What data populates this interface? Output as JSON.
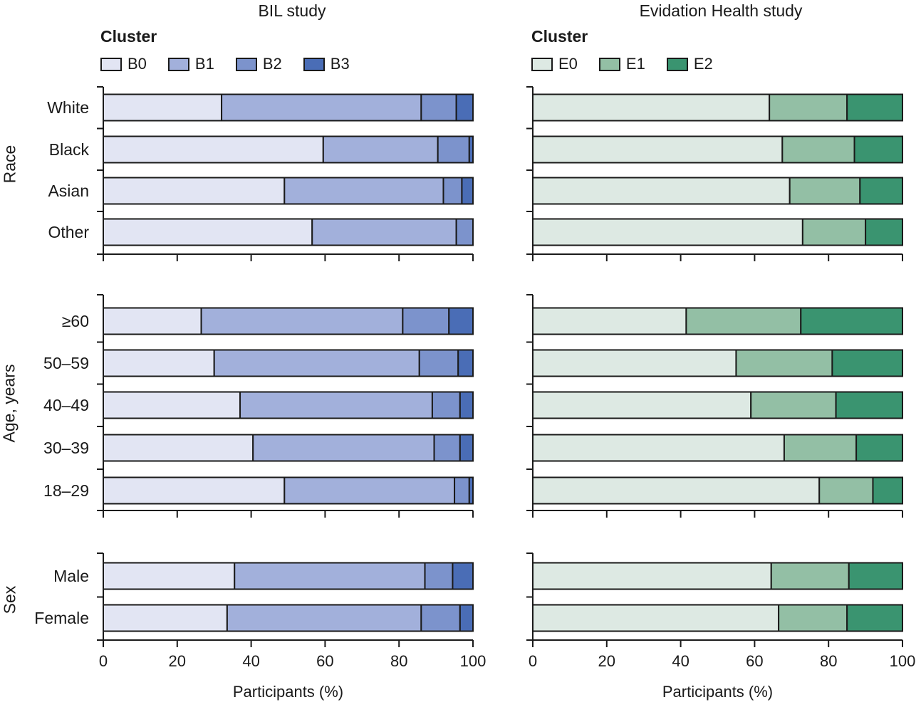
{
  "chart_data": [
    {
      "type": "bar",
      "orientation": "horizontal-stacked",
      "title": "BIL study",
      "legend_title": "Cluster",
      "xlabel": "Participants (%)",
      "xlim": [
        0,
        100
      ],
      "xticks": [
        "0",
        "20",
        "40",
        "60",
        "80",
        "100"
      ],
      "series": [
        {
          "name": "B0",
          "color": "#e2e5f3"
        },
        {
          "name": "B1",
          "color": "#a2b0db"
        },
        {
          "name": "B2",
          "color": "#7c93cc"
        },
        {
          "name": "B3",
          "color": "#4a6db6"
        }
      ],
      "groups": [
        {
          "label": "Race",
          "rows": [
            {
              "label": "White",
              "values": [
                32,
                54,
                9.5,
                4.5
              ]
            },
            {
              "label": "Black",
              "values": [
                59.5,
                31,
                8.5,
                1
              ]
            },
            {
              "label": "Asian",
              "values": [
                49,
                43,
                5,
                3
              ]
            },
            {
              "label": "Other",
              "values": [
                56.5,
                39,
                4.5,
                0
              ]
            }
          ]
        },
        {
          "label": "Age, years",
          "rows": [
            {
              "label": "≥60",
              "values": [
                26.5,
                54.5,
                12.5,
                6.5
              ]
            },
            {
              "label": "50–59",
              "values": [
                30,
                55.5,
                10.5,
                4
              ]
            },
            {
              "label": "40–49",
              "values": [
                37,
                52,
                7.5,
                3.5
              ]
            },
            {
              "label": "30–39",
              "values": [
                40.5,
                49,
                7,
                3.5
              ]
            },
            {
              "label": "18–29",
              "values": [
                49,
                46,
                4,
                1
              ]
            }
          ]
        },
        {
          "label": "Sex",
          "rows": [
            {
              "label": "Male",
              "values": [
                35.5,
                51.5,
                7.5,
                5.5
              ]
            },
            {
              "label": "Female",
              "values": [
                33.5,
                52.5,
                10.5,
                3.5
              ]
            }
          ]
        }
      ]
    },
    {
      "type": "bar",
      "orientation": "horizontal-stacked",
      "title": "Evidation Health study",
      "legend_title": "Cluster",
      "xlabel": "Participants (%)",
      "xlim": [
        0,
        100
      ],
      "xticks": [
        "0",
        "20",
        "40",
        "60",
        "80",
        "100"
      ],
      "series": [
        {
          "name": "E0",
          "color": "#dde9e3"
        },
        {
          "name": "E1",
          "color": "#93bfa5"
        },
        {
          "name": "E2",
          "color": "#3a9470"
        }
      ],
      "groups": [
        {
          "label": "Race",
          "rows": [
            {
              "label": "White",
              "values": [
                64,
                21,
                15
              ]
            },
            {
              "label": "Black",
              "values": [
                67.5,
                19.5,
                13
              ]
            },
            {
              "label": "Asian",
              "values": [
                69.5,
                19,
                11.5
              ]
            },
            {
              "label": "Other",
              "values": [
                73,
                17,
                10
              ]
            }
          ]
        },
        {
          "label": "Age, years",
          "rows": [
            {
              "label": "≥60",
              "values": [
                41.5,
                31,
                27.5
              ]
            },
            {
              "label": "50–59",
              "values": [
                55,
                26,
                19
              ]
            },
            {
              "label": "40–49",
              "values": [
                59,
                23,
                18
              ]
            },
            {
              "label": "30–39",
              "values": [
                68,
                19.5,
                12.5
              ]
            },
            {
              "label": "18–29",
              "values": [
                77.5,
                14.5,
                8
              ]
            }
          ]
        },
        {
          "label": "Sex",
          "rows": [
            {
              "label": "Male",
              "values": [
                64.5,
                21,
                14.5
              ]
            },
            {
              "label": "Female",
              "values": [
                66.5,
                18.5,
                15
              ]
            }
          ]
        }
      ]
    }
  ]
}
